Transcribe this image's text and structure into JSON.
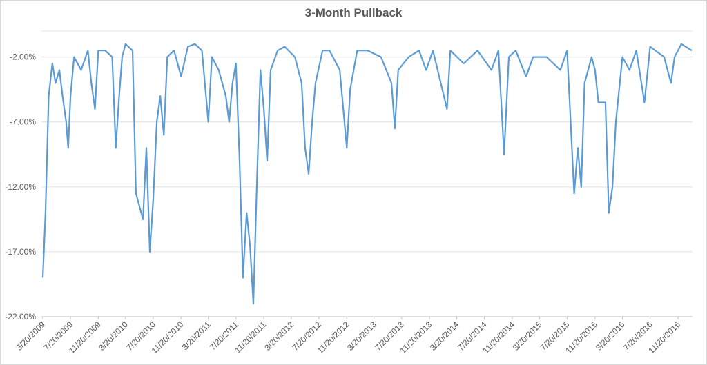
{
  "chart_data": {
    "type": "line",
    "title": "3-Month Pullback",
    "x": [
      "3/20/2009",
      "4/1/2009",
      "4/15/2009",
      "5/1/2009",
      "5/15/2009",
      "6/1/2009",
      "6/15/2009",
      "7/1/2009",
      "7/10/2009",
      "7/20/2009",
      "8/5/2009",
      "9/5/2009",
      "10/5/2009",
      "10/20/2009",
      "11/5/2009",
      "11/20/2009",
      "12/20/2009",
      "1/20/2010",
      "2/5/2010",
      "2/20/2010",
      "3/5/2010",
      "3/20/2010",
      "4/20/2010",
      "5/5/2010",
      "6/5/2010",
      "6/20/2010",
      "7/5/2010",
      "7/20/2010",
      "8/5/2010",
      "8/20/2010",
      "9/5/2010",
      "9/20/2010",
      "10/20/2010",
      "11/20/2010",
      "12/20/2010",
      "1/20/2011",
      "2/20/2011",
      "3/20/2011",
      "4/5/2011",
      "5/5/2011",
      "6/5/2011",
      "6/20/2011",
      "7/5/2011",
      "7/20/2011",
      "8/5/2011",
      "8/20/2011",
      "9/5/2011",
      "9/20/2011",
      "10/5/2011",
      "10/20/2011",
      "11/5/2011",
      "11/20/2011",
      "12/5/2011",
      "12/20/2011",
      "1/20/2012",
      "2/20/2012",
      "4/5/2012",
      "5/5/2012",
      "5/20/2012",
      "6/5/2012",
      "6/20/2012",
      "7/5/2012",
      "8/5/2012",
      "9/5/2012",
      "10/20/2012",
      "11/20/2012",
      "12/5/2012",
      "1/5/2013",
      "2/20/2013",
      "4/20/2013",
      "6/5/2013",
      "6/20/2013",
      "7/5/2013",
      "8/20/2013",
      "10/5/2013",
      "11/5/2013",
      "12/5/2013",
      "2/5/2014",
      "2/20/2014",
      "4/20/2014",
      "6/20/2014",
      "8/20/2014",
      "9/20/2014",
      "10/15/2014",
      "11/5/2014",
      "12/5/2014",
      "1/20/2015",
      "2/20/2015",
      "4/20/2015",
      "6/20/2015",
      "7/20/2015",
      "8/20/2015",
      "9/5/2015",
      "9/20/2015",
      "10/5/2015",
      "11/5/2015",
      "11/20/2015",
      "12/5/2015",
      "1/5/2016",
      "1/20/2016",
      "2/5/2016",
      "2/20/2016",
      "3/20/2016",
      "4/20/2016",
      "5/20/2016",
      "6/25/2016",
      "7/20/2016",
      "9/20/2016",
      "10/20/2016",
      "11/5/2016",
      "12/5/2016",
      "1/20/2017"
    ],
    "series": [
      {
        "name": "3-Month Pullback",
        "color": "#5b9bd5",
        "values": [
          -19,
          -14,
          -5,
          -2.5,
          -4,
          -3,
          -5,
          -7,
          -9,
          -5,
          -2,
          -3,
          -1.5,
          -4,
          -6,
          -1.5,
          -1.5,
          -2,
          -9,
          -5,
          -2,
          -1,
          -1.5,
          -12.5,
          -14.5,
          -9,
          -17,
          -13,
          -7,
          -5,
          -8,
          -2,
          -1.5,
          -3.5,
          -1.2,
          -1,
          -1.5,
          -7,
          -2,
          -3,
          -5,
          -7,
          -4,
          -2.5,
          -10,
          -19,
          -14,
          -16.5,
          -21,
          -12,
          -3,
          -6,
          -10,
          -3,
          -1.5,
          -1.2,
          -2,
          -4,
          -9,
          -11,
          -7,
          -4,
          -1.5,
          -1.5,
          -3,
          -9,
          -4.5,
          -1.5,
          -1.5,
          -2,
          -4,
          -7.5,
          -3,
          -2,
          -1.5,
          -3,
          -1.5,
          -6,
          -1.5,
          -2.5,
          -1.5,
          -3,
          -1.5,
          -9.5,
          -2,
          -1.5,
          -3.5,
          -2,
          -2,
          -3,
          -1.5,
          -12.5,
          -9,
          -12,
          -4,
          -2,
          -3,
          -5.5,
          -5.5,
          -14,
          -12,
          -7,
          -2,
          -3,
          -1.5,
          -5.5,
          -1.2,
          -2,
          -4,
          -2,
          -1,
          -1.5
        ]
      }
    ],
    "xlim": [
      "3/20/2009",
      "1/20/2017"
    ],
    "xticks": [
      "3/20/2009",
      "7/20/2009",
      "11/20/2009",
      "3/20/2010",
      "7/20/2010",
      "11/20/2010",
      "3/20/2011",
      "7/20/2011",
      "11/20/2011",
      "3/20/2012",
      "7/20/2012",
      "11/20/2012",
      "3/20/2013",
      "7/20/2013",
      "11/20/2013",
      "3/20/2014",
      "7/20/2014",
      "11/20/2014",
      "3/20/2015",
      "7/20/2015",
      "11/20/2015",
      "3/20/2016",
      "7/20/2016",
      "11/20/2016"
    ],
    "ylim": [
      -22,
      0
    ],
    "yticks": [
      {
        "value": -2,
        "label": "-2.00%"
      },
      {
        "value": -7,
        "label": "-7.00%"
      },
      {
        "value": -12,
        "label": "-12.00%"
      },
      {
        "value": -17,
        "label": "-17.00%"
      },
      {
        "value": -22,
        "label": "-22.00%"
      }
    ],
    "grid": true
  }
}
